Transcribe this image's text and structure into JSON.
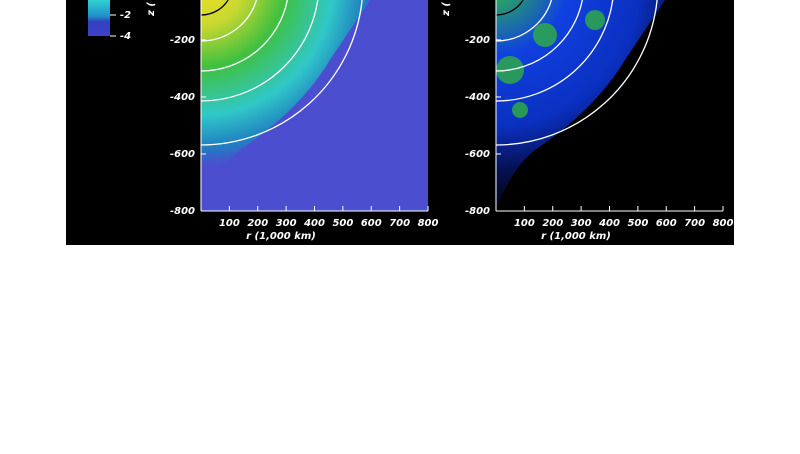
{
  "chart_data": [
    {
      "type": "heatmap",
      "xlabel": "r (1,000 km)",
      "ylabel": "z (",
      "xlim": [
        0,
        800
      ],
      "ylim": [
        -800,
        -60
      ],
      "xticks": [
        100,
        200,
        300,
        400,
        500,
        600,
        700,
        800
      ],
      "yticks": [
        -200,
        -400,
        -600,
        -800
      ],
      "colorbar_ticks": [
        -2,
        -4
      ]
    },
    {
      "type": "heatmap",
      "xlabel": "r (1,000 km)",
      "ylabel": "z (",
      "xlim": [
        0,
        800
      ],
      "ylim": [
        -800,
        -60
      ],
      "xticks": [
        100,
        200,
        300,
        400,
        500,
        600,
        700,
        800
      ],
      "yticks": [
        -200,
        -400,
        -600,
        -800
      ]
    }
  ]
}
